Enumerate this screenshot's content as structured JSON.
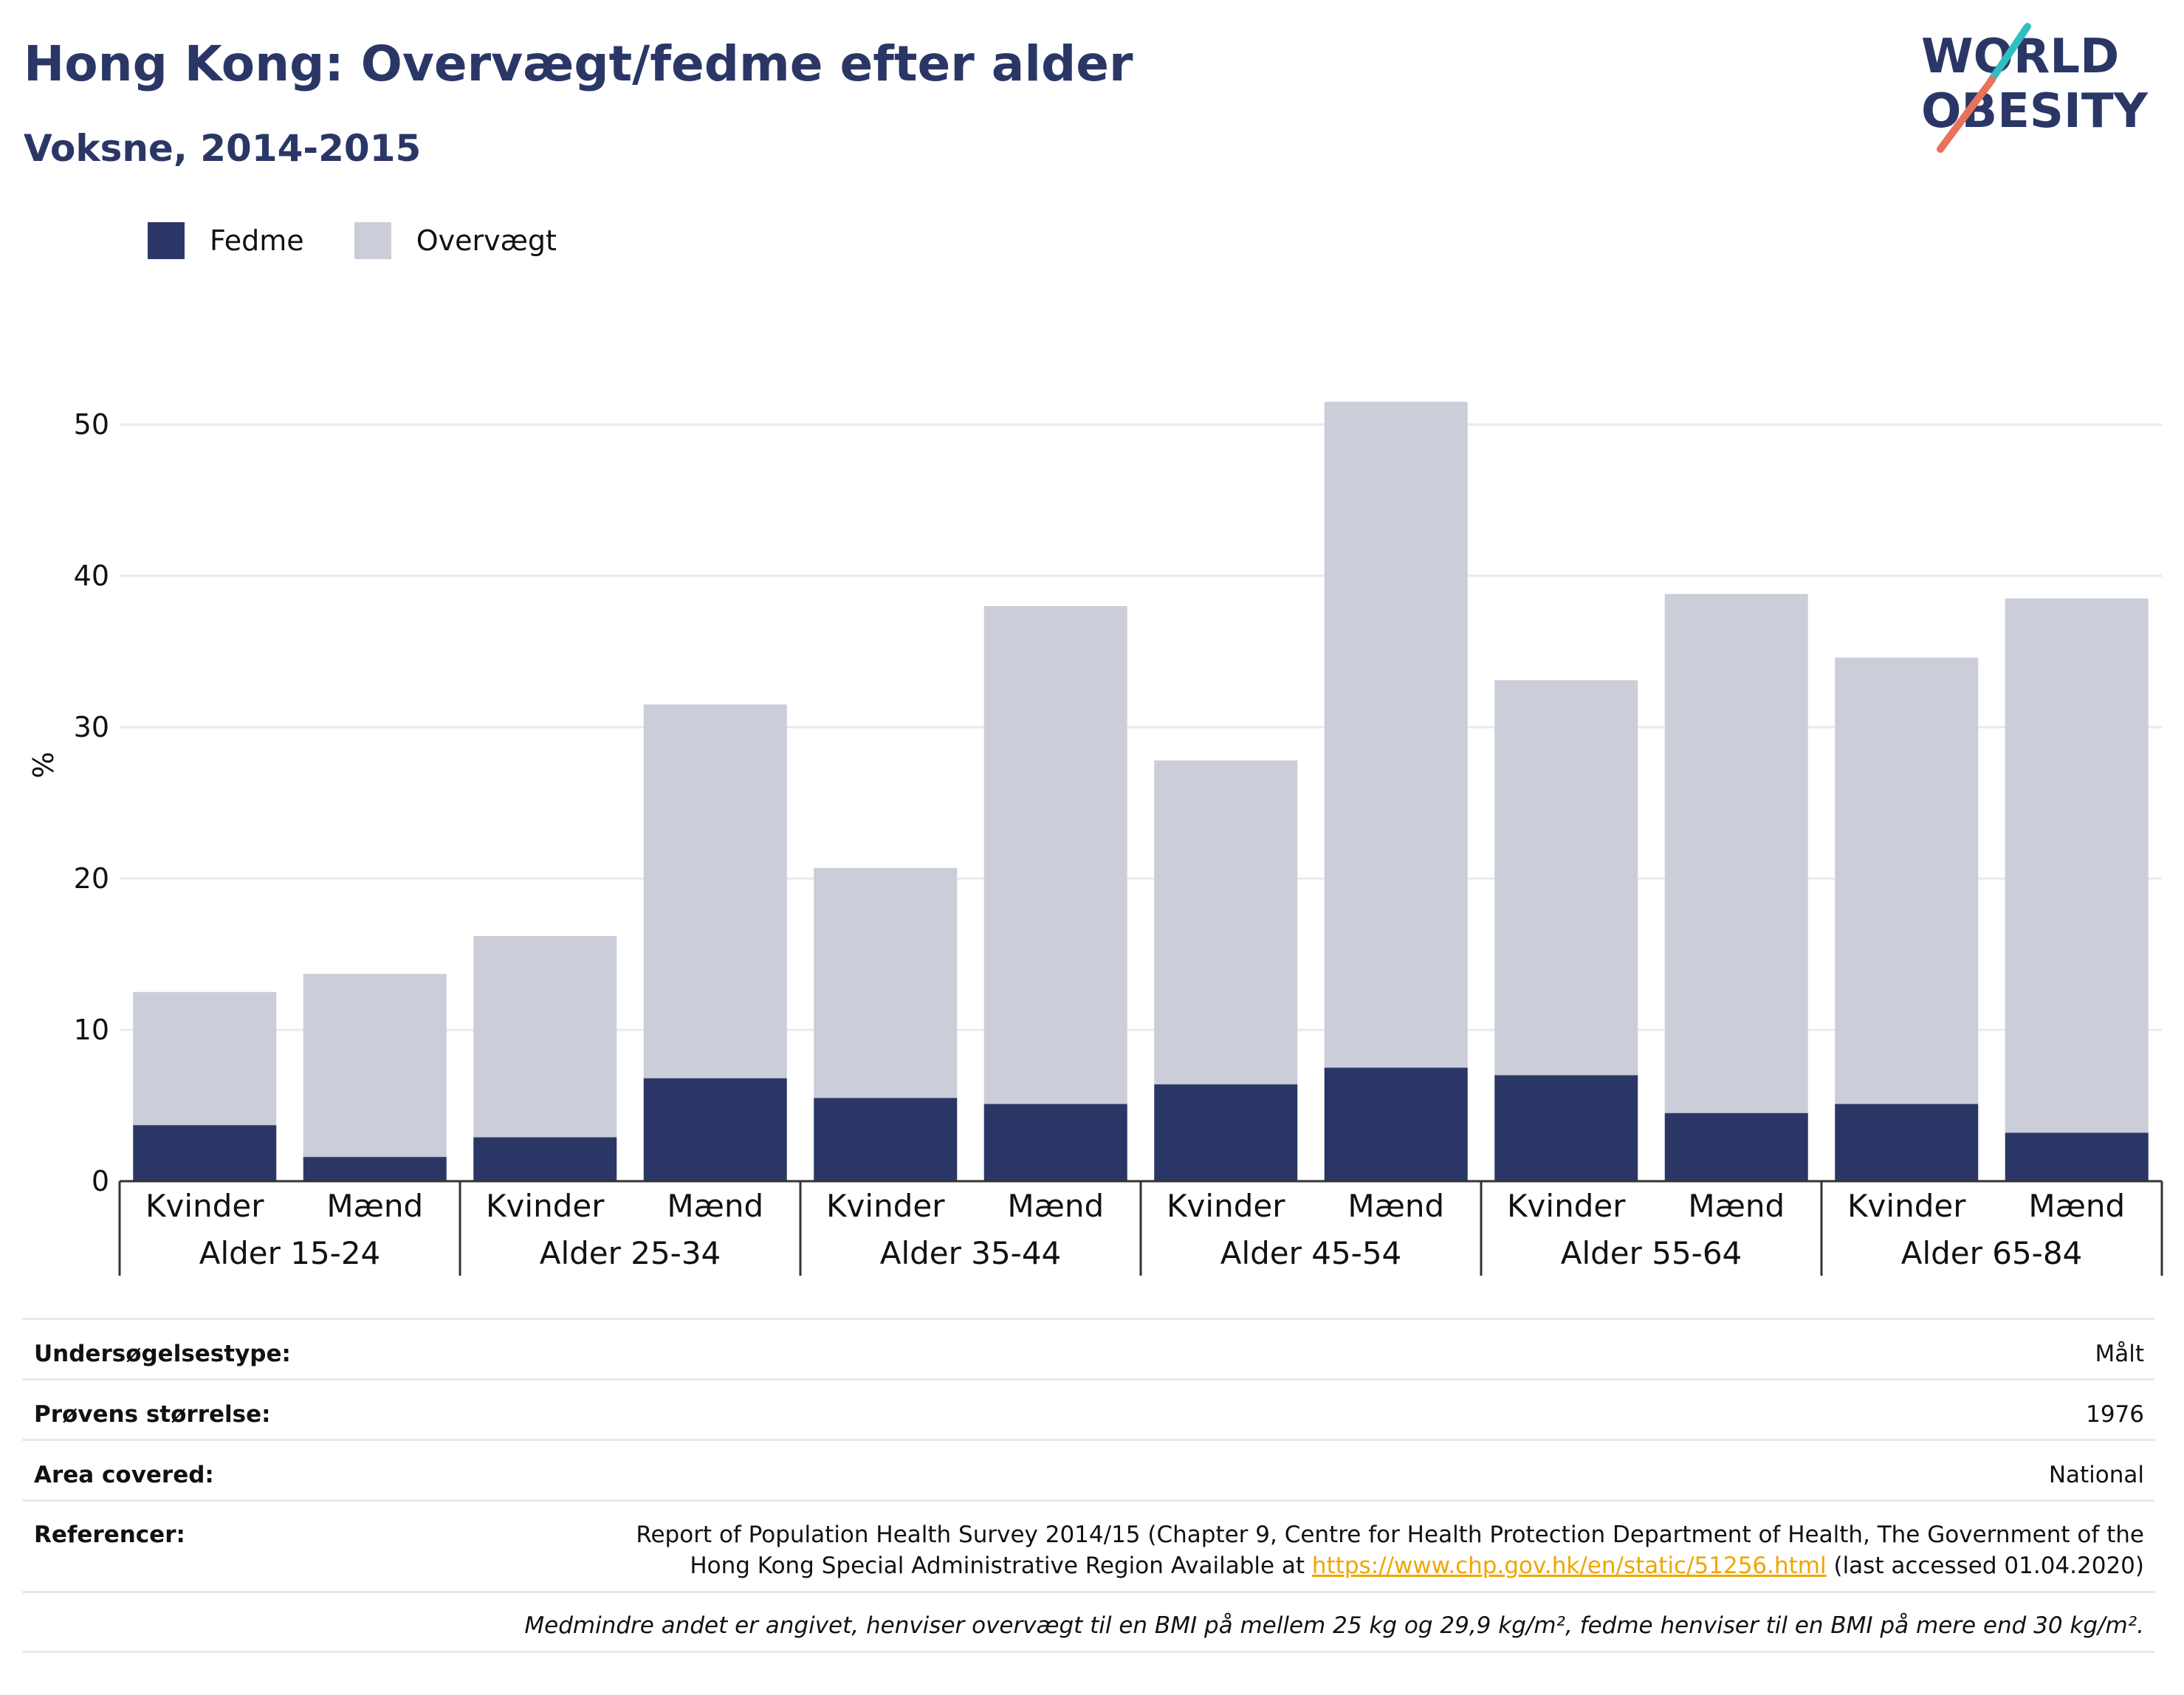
{
  "title": "Hong Kong: Overvægt/fedme efter alder",
  "subtitle": "Voksne, 2014-2015",
  "logo": {
    "line1": "WORLD",
    "line2": "OBESITY"
  },
  "colors": {
    "fedme": "#2a3766",
    "overvaegt": "#cbcdd8",
    "title": "#2a3766",
    "link": "#f0a500"
  },
  "chart_data": {
    "type": "bar",
    "stacked": true,
    "ylabel": "%",
    "ylim": [
      0,
      55
    ],
    "yticks": [
      0,
      10,
      20,
      30,
      40,
      50
    ],
    "grid": true,
    "legend_placement": "top-left",
    "groups": [
      "Alder 15-24",
      "Alder 25-34",
      "Alder 35-44",
      "Alder 45-54",
      "Alder 55-64",
      "Alder 65-84"
    ],
    "categories": [
      "Kvinder",
      "Mænd",
      "Kvinder",
      "Mænd",
      "Kvinder",
      "Mænd",
      "Kvinder",
      "Mænd",
      "Kvinder",
      "Mænd",
      "Kvinder",
      "Mænd"
    ],
    "series": [
      {
        "name": "Fedme",
        "values": [
          3.7,
          1.6,
          2.9,
          6.8,
          5.5,
          5.1,
          6.4,
          7.5,
          7.0,
          4.5,
          5.1,
          3.2
        ]
      },
      {
        "name": "Overvægt",
        "values": [
          8.8,
          12.1,
          13.3,
          24.7,
          15.2,
          32.9,
          21.4,
          44.0,
          26.1,
          34.3,
          29.5,
          35.3
        ]
      }
    ]
  },
  "info": {
    "survey_type_label": "Undersøgelsestype:",
    "survey_type_value": "Målt",
    "sample_size_label": "Prøvens størrelse:",
    "sample_size_value": "1976",
    "area_label": "Area covered:",
    "area_value": "National",
    "references_label": "Referencer:",
    "references_line1": "Report of Population Health Survey 2014/15 (Chapter 9, Centre for Health Protection Department of Health, The Government of the",
    "references_line2_pre": "Hong Kong Special Administrative Region Available at ",
    "references_link": "https://www.chp.gov.hk/en/static/51256.html",
    "references_line2_post": " (last accessed 01.04.2020)",
    "footnote": "Medmindre andet er angivet, henviser overvægt til en BMI på mellem 25 kg og 29,9 kg/m², fedme henviser til en BMI på mere end 30 kg/m²."
  }
}
